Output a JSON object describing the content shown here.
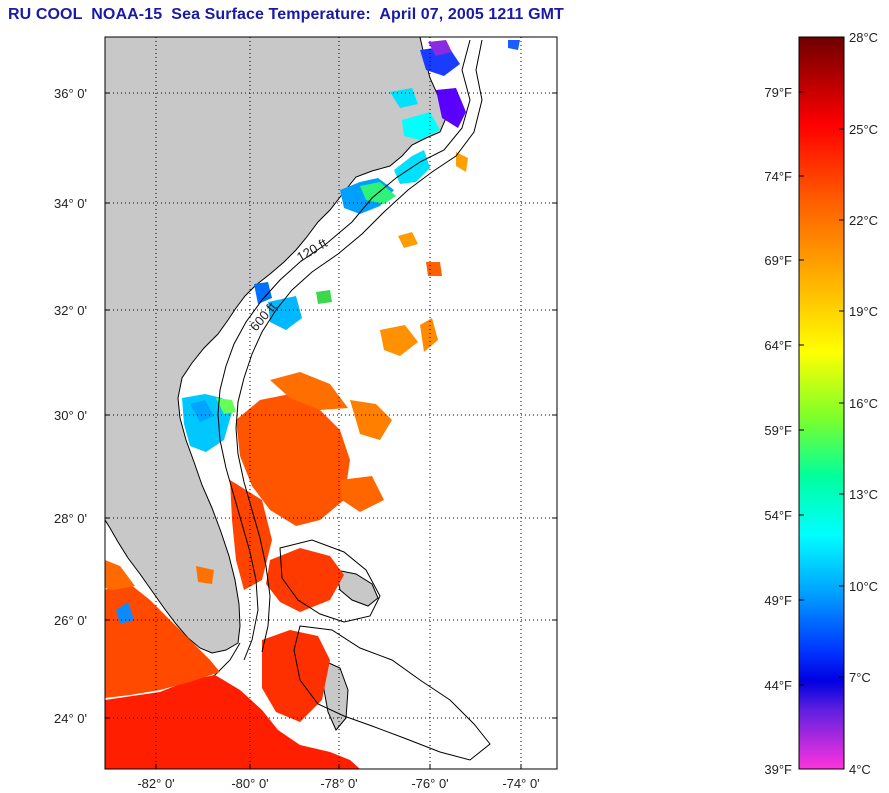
{
  "title": "RU COOL  NOAA-15  Sea Surface Temperature:  April 07, 2005 1211 GMT",
  "map": {
    "lat_labels": [
      "36° 0'",
      "34° 0'",
      "32° 0'",
      "30° 0'",
      "28° 0'",
      "26° 0'",
      "24° 0'"
    ],
    "lon_labels": [
      "-82° 0'",
      "-80° 0'",
      "-78° 0'",
      "-76° 0'",
      "-74° 0'"
    ],
    "contour_labels": [
      "120 ft",
      "600 ft"
    ],
    "colors": {
      "land": "#c8c8c8",
      "ocean_nodata": "#ffffff",
      "coast": "#000000"
    }
  },
  "colorbar": {
    "celsius_labels": [
      "28°C",
      "25°C",
      "22°C",
      "19°C",
      "16°C",
      "13°C",
      "10°C",
      "7°C",
      "4°C"
    ],
    "fahrenheit_labels": [
      "79°F",
      "74°F",
      "69°F",
      "64°F",
      "59°F",
      "54°F",
      "49°F",
      "44°F",
      "39°F"
    ],
    "colors": [
      "#7a0000",
      "#ff0000",
      "#ff7a00",
      "#ffff00",
      "#00ff6a",
      "#00ffff",
      "#0055ff",
      "#0000ff",
      "#7a00ff",
      "#ff33cc"
    ]
  }
}
